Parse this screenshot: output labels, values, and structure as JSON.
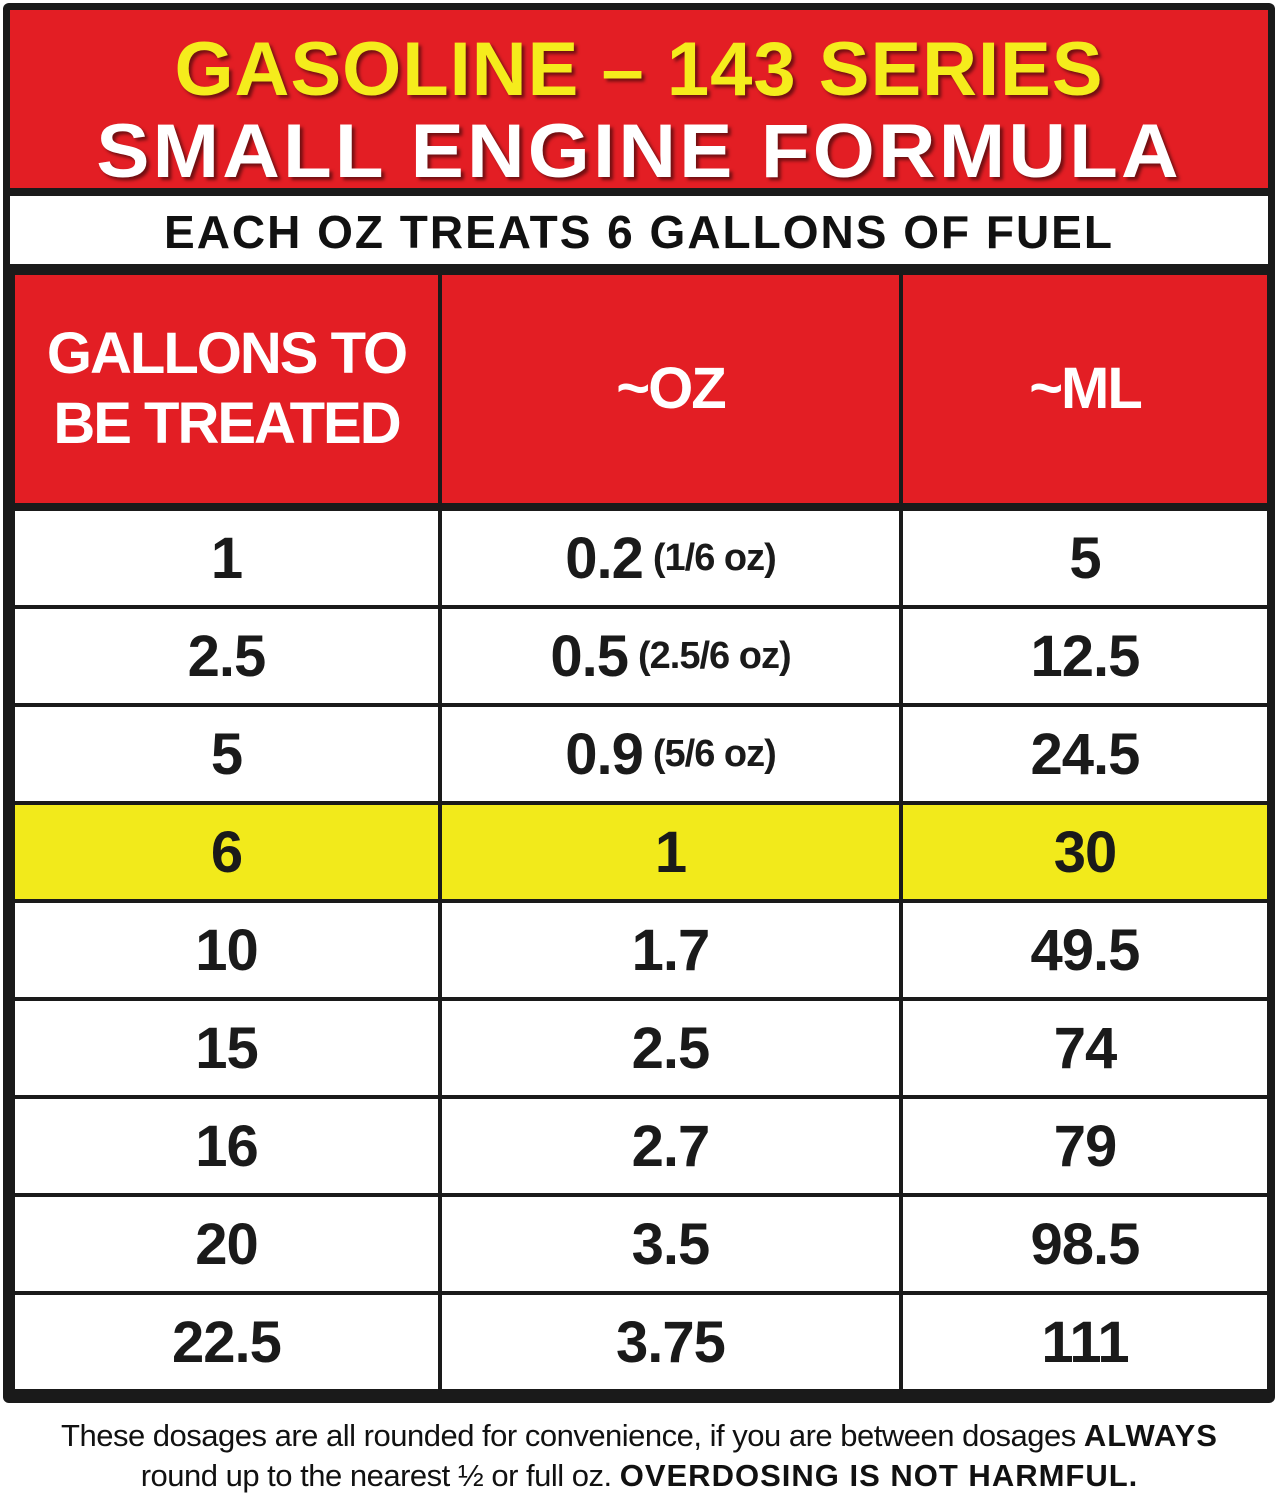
{
  "title": {
    "line1": "GASOLINE – 143 SERIES",
    "line2": "SMALL ENGINE FORMULA"
  },
  "subtitle": "EACH OZ TREATS 6 GALLONS OF FUEL",
  "colors": {
    "red": "#e31e24",
    "yellow_title": "#f5ec1c",
    "highlight_row": "#f2ea1b"
  },
  "table": {
    "headers": [
      "GALLONS TO BE TREATED",
      "~OZ",
      "~ML"
    ],
    "highlighted_row_index": 3,
    "rows": [
      {
        "gallons": "1",
        "oz": "0.2",
        "oz_note": "(1/6 oz)",
        "ml": "5"
      },
      {
        "gallons": "2.5",
        "oz": "0.5",
        "oz_note": "(2.5/6 oz)",
        "ml": "12.5"
      },
      {
        "gallons": "5",
        "oz": "0.9",
        "oz_note": "(5/6 oz)",
        "ml": "24.5"
      },
      {
        "gallons": "6",
        "oz": "1",
        "oz_note": "",
        "ml": "30"
      },
      {
        "gallons": "10",
        "oz": "1.7",
        "oz_note": "",
        "ml": "49.5"
      },
      {
        "gallons": "15",
        "oz": "2.5",
        "oz_note": "",
        "ml": "74"
      },
      {
        "gallons": "16",
        "oz": "2.7",
        "oz_note": "",
        "ml": "79"
      },
      {
        "gallons": "20",
        "oz": "3.5",
        "oz_note": "",
        "ml": "98.5"
      },
      {
        "gallons": "22.5",
        "oz": "3.75",
        "oz_note": "",
        "ml": "111"
      }
    ]
  },
  "footer": {
    "text1": "These dosages are all rounded for convenience, if you are between dosages ",
    "bold1": "ALWAYS",
    "text2": "round up to the nearest ½ or full oz. ",
    "bold2": "OVERDOSING IS NOT HARMFUL."
  }
}
